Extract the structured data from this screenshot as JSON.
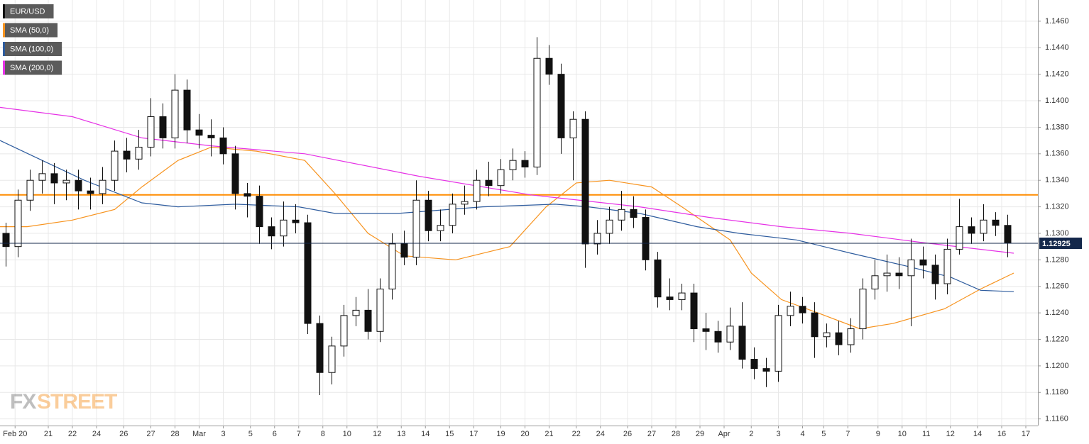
{
  "chart_data": {
    "type": "candlestick",
    "candles": {
      "name": "EUR/USD",
      "color": "#111111",
      "up_color": "#ffffff",
      "down_color": "#111111",
      "x": [
        1,
        3,
        5,
        7,
        9,
        11,
        13,
        15,
        17,
        19,
        21,
        23,
        25,
        27,
        29,
        31,
        33,
        35,
        37,
        39,
        41,
        43,
        45,
        47,
        49,
        51,
        53,
        55,
        57,
        59,
        61,
        63,
        65,
        67,
        69,
        71,
        73,
        75,
        77,
        79,
        81,
        83,
        85,
        87,
        89,
        91,
        93,
        95,
        97,
        99,
        101,
        103,
        105,
        107,
        109,
        111,
        113,
        115,
        117,
        119,
        121,
        123,
        125,
        127,
        129,
        131,
        133,
        135,
        137,
        139,
        141,
        143,
        145,
        147,
        149,
        151,
        153,
        155,
        157,
        159,
        161,
        163,
        165,
        167
      ],
      "open": [
        1.13,
        1.129,
        1.1325,
        1.134,
        1.1345,
        1.1338,
        1.134,
        1.1332,
        1.133,
        1.134,
        1.1362,
        1.1356,
        1.1365,
        1.1388,
        1.1372,
        1.1408,
        1.1378,
        1.1374,
        1.1372,
        1.136,
        1.133,
        1.1328,
        1.1305,
        1.1298,
        1.131,
        1.1308,
        1.1232,
        1.1195,
        1.1215,
        1.1238,
        1.1242,
        1.1226,
        1.1258,
        1.1292,
        1.1282,
        1.1325,
        1.1302,
        1.1306,
        1.1322,
        1.1324,
        1.134,
        1.1336,
        1.1348,
        1.1355,
        1.135,
        1.1432,
        1.142,
        1.1372,
        1.1386,
        1.1292,
        1.13,
        1.131,
        1.1318,
        1.1312,
        1.128,
        1.1252,
        1.125,
        1.1255,
        1.1228,
        1.1226,
        1.1218,
        1.123,
        1.1205,
        1.1198,
        1.1196,
        1.1238,
        1.1245,
        1.124,
        1.1222,
        1.1225,
        1.1216,
        1.1228,
        1.1258,
        1.1268,
        1.127,
        1.1268,
        1.128,
        1.1276,
        1.1262,
        1.1288,
        1.1305,
        1.13,
        1.131,
        1.1306
      ],
      "high": [
        1.1308,
        1.1333,
        1.1348,
        1.1355,
        1.1353,
        1.1348,
        1.1348,
        1.1342,
        1.135,
        1.137,
        1.1372,
        1.1378,
        1.1402,
        1.1398,
        1.142,
        1.1416,
        1.139,
        1.1386,
        1.138,
        1.1366,
        1.1338,
        1.1336,
        1.1312,
        1.1324,
        1.1322,
        1.1314,
        1.1238,
        1.1222,
        1.1246,
        1.1252,
        1.1258,
        1.1266,
        1.13,
        1.1302,
        1.134,
        1.1332,
        1.1318,
        1.133,
        1.1336,
        1.1348,
        1.1354,
        1.1356,
        1.1364,
        1.1362,
        1.1448,
        1.1442,
        1.1428,
        1.1392,
        1.1392,
        1.131,
        1.132,
        1.1332,
        1.1328,
        1.1318,
        1.1286,
        1.1266,
        1.1262,
        1.1262,
        1.124,
        1.1234,
        1.1244,
        1.1248,
        1.1214,
        1.1206,
        1.1246,
        1.1256,
        1.1252,
        1.1248,
        1.1232,
        1.1234,
        1.1236,
        1.1266,
        1.128,
        1.1284,
        1.1282,
        1.1296,
        1.129,
        1.1284,
        1.1296,
        1.1326,
        1.1312,
        1.1322,
        1.1316,
        1.1314
      ],
      "low": [
        1.1275,
        1.1282,
        1.1317,
        1.133,
        1.1322,
        1.1325,
        1.1318,
        1.1318,
        1.1322,
        1.1332,
        1.1346,
        1.1348,
        1.1358,
        1.1364,
        1.1364,
        1.1368,
        1.1364,
        1.1358,
        1.1352,
        1.1318,
        1.1312,
        1.1292,
        1.1288,
        1.129,
        1.13,
        1.1224,
        1.1178,
        1.1186,
        1.1207,
        1.123,
        1.122,
        1.1218,
        1.125,
        1.1276,
        1.1276,
        1.1294,
        1.1294,
        1.13,
        1.1314,
        1.1318,
        1.1328,
        1.133,
        1.134,
        1.1342,
        1.1344,
        1.1412,
        1.136,
        1.134,
        1.1274,
        1.1284,
        1.1292,
        1.1302,
        1.1304,
        1.1272,
        1.1244,
        1.1242,
        1.1242,
        1.1218,
        1.1212,
        1.121,
        1.1212,
        1.1198,
        1.119,
        1.1184,
        1.1188,
        1.123,
        1.1232,
        1.1206,
        1.1214,
        1.1208,
        1.121,
        1.122,
        1.125,
        1.1256,
        1.1258,
        1.123,
        1.1266,
        1.125,
        1.1254,
        1.1284,
        1.1292,
        1.1294,
        1.1298,
        1.1282
      ],
      "close": [
        1.129,
        1.1325,
        1.134,
        1.1345,
        1.1338,
        1.134,
        1.1332,
        1.133,
        1.134,
        1.1362,
        1.1356,
        1.1365,
        1.1388,
        1.1372,
        1.1408,
        1.1378,
        1.1374,
        1.1372,
        1.136,
        1.133,
        1.1328,
        1.1305,
        1.1298,
        1.131,
        1.1308,
        1.1232,
        1.1195,
        1.1215,
        1.1238,
        1.1242,
        1.1226,
        1.1258,
        1.1292,
        1.1282,
        1.1325,
        1.1302,
        1.1306,
        1.1322,
        1.1324,
        1.134,
        1.1336,
        1.1348,
        1.1355,
        1.135,
        1.1432,
        1.142,
        1.1372,
        1.1386,
        1.1292,
        1.13,
        1.131,
        1.1318,
        1.1312,
        1.128,
        1.1252,
        1.125,
        1.1255,
        1.1228,
        1.1226,
        1.1218,
        1.123,
        1.1205,
        1.1198,
        1.1196,
        1.1238,
        1.1245,
        1.124,
        1.1222,
        1.1225,
        1.1216,
        1.1228,
        1.1258,
        1.1268,
        1.127,
        1.1268,
        1.128,
        1.1276,
        1.1262,
        1.1288,
        1.1305,
        1.13,
        1.131,
        1.1306,
        1.12925
      ]
    },
    "series": [
      {
        "name": "SMA (50,0)",
        "color": "#f7931e",
        "x": [
          0,
          4.5,
          12,
          19,
          23.5,
          29.5,
          35,
          42.5,
          50.5,
          55.5,
          61,
          67,
          75.5,
          84.5,
          90.5,
          95.5,
          101,
          108,
          113,
          121,
          124.5,
          129.5,
          135.5,
          142.5,
          148,
          156.5,
          162.5,
          168
        ],
        "values": [
          1.1305,
          1.1305,
          1.131,
          1.1318,
          1.1335,
          1.1355,
          1.1365,
          1.1362,
          1.1355,
          1.133,
          1.13,
          1.1283,
          1.128,
          1.129,
          1.132,
          1.1338,
          1.134,
          1.1335,
          1.132,
          1.1295,
          1.127,
          1.125,
          1.124,
          1.1228,
          1.1232,
          1.1243,
          1.1258,
          1.127
        ]
      },
      {
        "name": "SMA (100,0)",
        "color": "#2e5c9e",
        "x": [
          0,
          7,
          14,
          23.5,
          29.5,
          39,
          49.5,
          55.5,
          66,
          80,
          92,
          97.5,
          106,
          115.5,
          122.5,
          132,
          141,
          150.5,
          157.5,
          162.5,
          168
        ],
        "values": [
          1.137,
          1.1355,
          1.134,
          1.1323,
          1.132,
          1.1322,
          1.132,
          1.1315,
          1.1315,
          1.132,
          1.1322,
          1.132,
          1.1315,
          1.1305,
          1.13,
          1.1295,
          1.1285,
          1.1275,
          1.1267,
          1.1257,
          1.1256
        ]
      },
      {
        "name": "SMA (200,0)",
        "color": "#e632e6",
        "x": [
          0,
          12,
          23.5,
          35,
          50.5,
          69.5,
          88,
          106,
          117.5,
          129.5,
          141,
          153,
          168
        ],
        "values": [
          1.1395,
          1.1388,
          1.1372,
          1.1366,
          1.136,
          1.1343,
          1.1329,
          1.132,
          1.1312,
          1.1305,
          1.13,
          1.1293,
          1.1285
        ]
      }
    ],
    "hline": {
      "value": 1.1329,
      "color": "#ff8c00"
    },
    "last_price": {
      "value": 1.12925,
      "color": "#14284b"
    },
    "xlim": [
      0,
      172
    ],
    "xticks": [
      {
        "value": 2.5,
        "label": "Feb 20"
      },
      {
        "value": 8,
        "label": "21"
      },
      {
        "value": 12,
        "label": "22"
      },
      {
        "value": 16,
        "label": "24"
      },
      {
        "value": 20.5,
        "label": "26"
      },
      {
        "value": 25,
        "label": "27"
      },
      {
        "value": 29,
        "label": "28"
      },
      {
        "value": 33,
        "label": "Mar"
      },
      {
        "value": 37,
        "label": "3"
      },
      {
        "value": 41.5,
        "label": "5"
      },
      {
        "value": 45.5,
        "label": "6"
      },
      {
        "value": 49.5,
        "label": "7"
      },
      {
        "value": 53.5,
        "label": "8"
      },
      {
        "value": 57.5,
        "label": "10"
      },
      {
        "value": 62.5,
        "label": "12"
      },
      {
        "value": 66.5,
        "label": "13"
      },
      {
        "value": 70.5,
        "label": "14"
      },
      {
        "value": 74.5,
        "label": "15"
      },
      {
        "value": 78.5,
        "label": "17"
      },
      {
        "value": 83,
        "label": "19"
      },
      {
        "value": 87,
        "label": "20"
      },
      {
        "value": 91,
        "label": "21"
      },
      {
        "value": 95.5,
        "label": "22"
      },
      {
        "value": 99.5,
        "label": "24"
      },
      {
        "value": 104,
        "label": "26"
      },
      {
        "value": 108,
        "label": "27"
      },
      {
        "value": 112,
        "label": "28"
      },
      {
        "value": 116,
        "label": "29"
      },
      {
        "value": 120,
        "label": "Apr"
      },
      {
        "value": 124.5,
        "label": "2"
      },
      {
        "value": 129,
        "label": "3"
      },
      {
        "value": 133,
        "label": "4"
      },
      {
        "value": 136.5,
        "label": "5"
      },
      {
        "value": 140.5,
        "label": "7"
      },
      {
        "value": 145.5,
        "label": "9"
      },
      {
        "value": 149.5,
        "label": "10"
      },
      {
        "value": 153.5,
        "label": "11"
      },
      {
        "value": 157.5,
        "label": "12"
      },
      {
        "value": 162,
        "label": "14"
      },
      {
        "value": 166,
        "label": "16"
      },
      {
        "value": 170,
        "label": "17"
      }
    ],
    "ylim": [
      1.1155,
      1.1476
    ],
    "yticks": [
      {
        "value": 1.116,
        "label": "1.1160"
      },
      {
        "value": 1.118,
        "label": "1.1180"
      },
      {
        "value": 1.12,
        "label": "1.1200"
      },
      {
        "value": 1.122,
        "label": "1.1220"
      },
      {
        "value": 1.124,
        "label": "1.1240"
      },
      {
        "value": 1.126,
        "label": "1.1260"
      },
      {
        "value": 1.128,
        "label": "1.1280"
      },
      {
        "value": 1.13,
        "label": "1.1300"
      },
      {
        "value": 1.132,
        "label": "1.1320"
      },
      {
        "value": 1.134,
        "label": "1.1340"
      },
      {
        "value": 1.136,
        "label": "1.1360"
      },
      {
        "value": 1.138,
        "label": "1.1380"
      },
      {
        "value": 1.14,
        "label": "1.1400"
      },
      {
        "value": 1.142,
        "label": "1.1420"
      },
      {
        "value": 1.144,
        "label": "1.1440"
      },
      {
        "value": 1.146,
        "label": "1.1460"
      }
    ],
    "grid": true,
    "watermark": {
      "part1": "FX",
      "part2": "STREET"
    }
  }
}
